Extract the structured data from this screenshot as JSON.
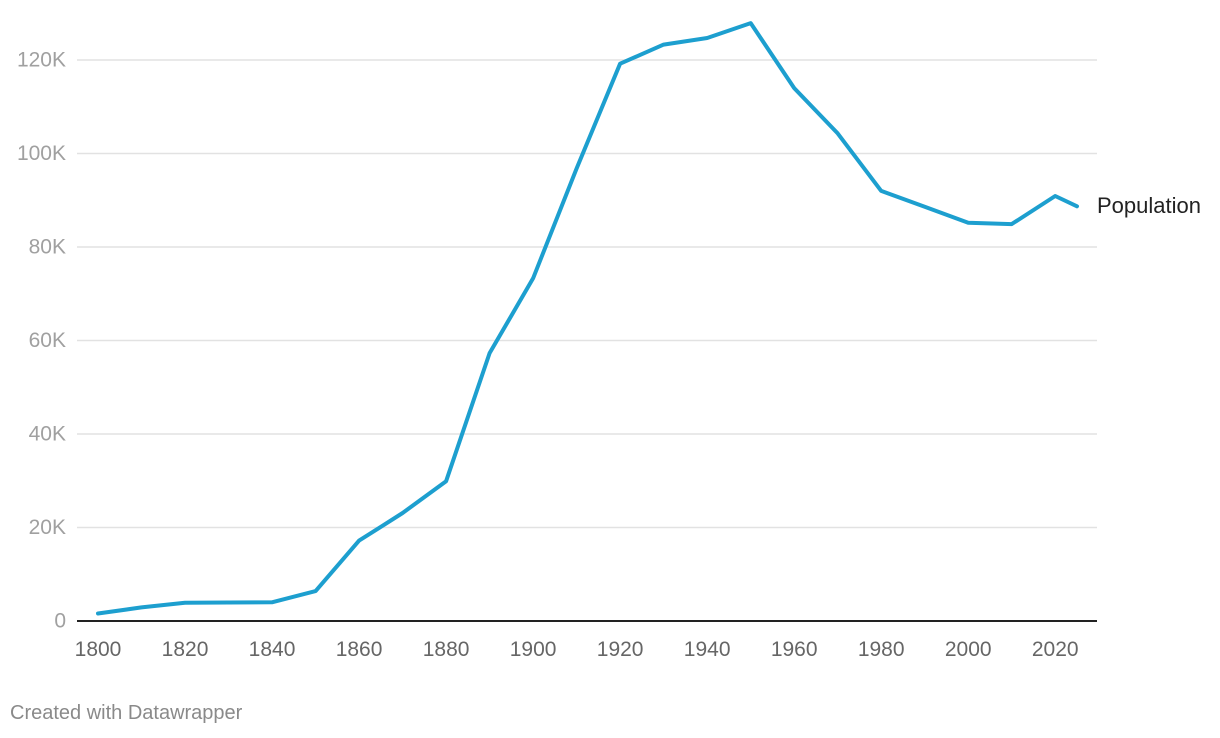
{
  "chart_data": {
    "type": "line",
    "title": "",
    "xlabel": "",
    "ylabel": "",
    "x": [
      1800,
      1810,
      1820,
      1830,
      1840,
      1850,
      1860,
      1870,
      1880,
      1890,
      1900,
      1910,
      1920,
      1930,
      1940,
      1950,
      1960,
      1970,
      1980,
      1990,
      2000,
      2010,
      2020,
      2025
    ],
    "series": [
      {
        "name": "Population",
        "color": "#1d9fcf",
        "values": [
          1600,
          2900,
          3900,
          3950,
          4000,
          6400,
          17200,
          23100,
          29900,
          57300,
          73300,
          96800,
          119200,
          123300,
          124700,
          127900,
          114000,
          104300,
          92000,
          88600,
          85200,
          84900,
          90900,
          88700
        ]
      }
    ],
    "xlim": [
      1800,
      2025
    ],
    "ylim": [
      0,
      120000
    ],
    "x_ticks": [
      1800,
      1820,
      1840,
      1860,
      1880,
      1900,
      1920,
      1940,
      1960,
      1980,
      2000,
      2020
    ],
    "x_tick_labels": [
      "1800",
      "1820",
      "1840",
      "1860",
      "1880",
      "1900",
      "1920",
      "1940",
      "1960",
      "1980",
      "2000",
      "2020"
    ],
    "y_ticks": [
      0,
      20000,
      40000,
      60000,
      80000,
      100000,
      120000
    ],
    "y_tick_labels": [
      "0",
      "20K",
      "40K",
      "60K",
      "80K",
      "100K",
      "120K"
    ],
    "grid": true,
    "legend": "none (direct label at line end)"
  },
  "footer": {
    "credit": "Created with Datawrapper"
  },
  "colors": {
    "line": "#1d9fcf",
    "grid": "#e2e2e2",
    "axis": "#222222",
    "tick_label": "#a0a0a0",
    "x_tick_label": "#666666"
  }
}
